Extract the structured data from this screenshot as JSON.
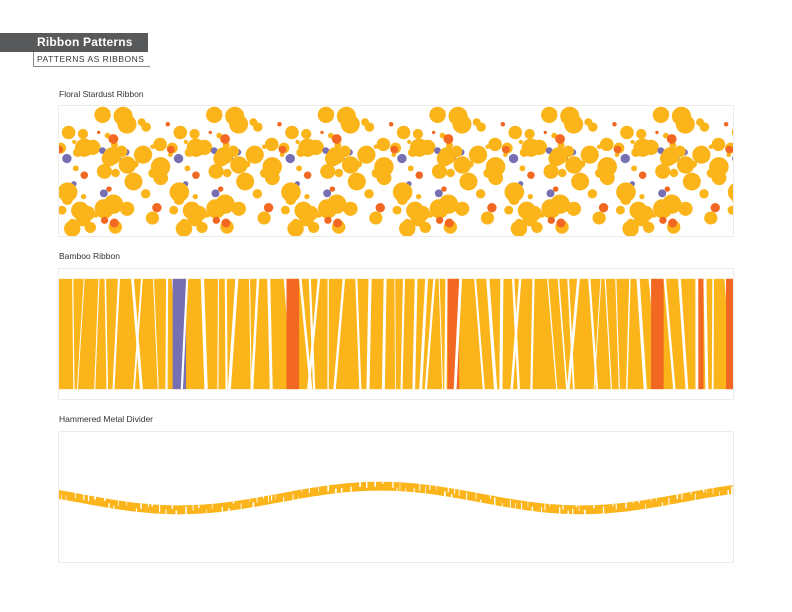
{
  "header": {
    "title": "Ribbon Patterns",
    "subtitle": "PATTERNS AS RIBBONS"
  },
  "sections": [
    {
      "title": "Floral Stardust Ribbon"
    },
    {
      "title": "Bamboo Ribbon"
    },
    {
      "title": "Hammered Metal Divider"
    }
  ],
  "colors": {
    "header_bg": "#58595b",
    "gold": "#fbb419",
    "orange": "#f26722",
    "violet": "#7670b3",
    "white": "#ffffff"
  }
}
